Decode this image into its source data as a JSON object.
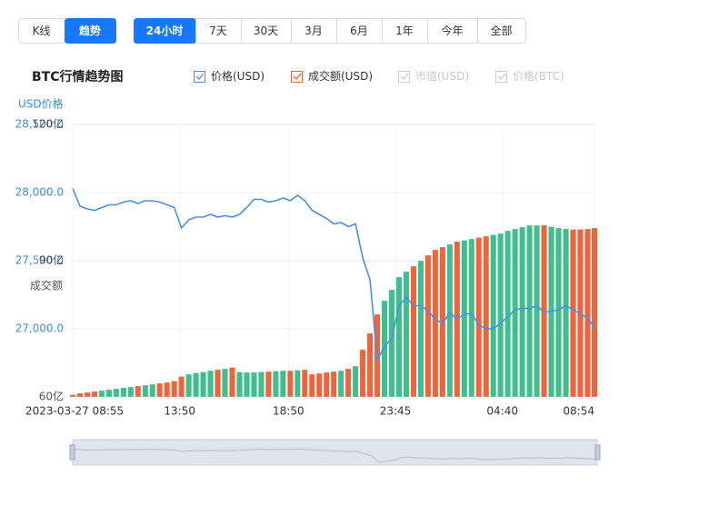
{
  "controls": {
    "tabs": [
      "K线",
      "趋势"
    ],
    "active_tab": 1,
    "ranges": [
      "24小时",
      "7天",
      "30天",
      "3月",
      "6月",
      "1年",
      "今年",
      "全部"
    ],
    "active_range": 0
  },
  "chart_data": {
    "type": "price-volume",
    "title": "BTC行情趋势图",
    "legend": [
      {
        "label": "价格(USD)",
        "color": "#4a90e2",
        "checked": true
      },
      {
        "label": "成交额(USD)",
        "color": "#f0643c",
        "checked": true
      },
      {
        "label": "市值(USD)",
        "color": "#cccccc",
        "checked": false
      },
      {
        "label": "价格(BTC)",
        "color": "#cccccc",
        "checked": false
      }
    ],
    "y_label": "USD价格",
    "y2_label": "成交额",
    "x": [
      0,
      20,
      40,
      60,
      80,
      100,
      120,
      140,
      160,
      180,
      200,
      220,
      240,
      260,
      280,
      300,
      320,
      340,
      360,
      380,
      400,
      420,
      440,
      460,
      480,
      500,
      520,
      540,
      560,
      580,
      600,
      620,
      640,
      660,
      680,
      700,
      720,
      740,
      760,
      780,
      800,
      820,
      840,
      860,
      880,
      900,
      920,
      940,
      960,
      980,
      1000,
      1020,
      1040,
      1060,
      1080,
      1100,
      1120,
      1140,
      1160,
      1180,
      1200,
      1220,
      1240,
      1260,
      1280,
      1300,
      1320,
      1340,
      1360,
      1380,
      1400,
      1420,
      1439
    ],
    "xlim": [
      0,
      1439
    ],
    "xticks": [
      {
        "value": 0,
        "label": "2023-03-27 08:55"
      },
      {
        "value": 295,
        "label": "13:50"
      },
      {
        "value": 595,
        "label": "18:50"
      },
      {
        "value": 890,
        "label": "23:45"
      },
      {
        "value": 1185,
        "label": "04:40"
      },
      {
        "value": 1439,
        "label": "08:54"
      }
    ],
    "ylim": [
      26500,
      28500
    ],
    "yticks": [
      {
        "value": 27000,
        "label": "27,000.0"
      },
      {
        "value": 27500,
        "label": "27,500.0"
      },
      {
        "value": 28000,
        "label": "28,000.0"
      },
      {
        "value": 28500,
        "label": "28,500.0"
      }
    ],
    "y2lim": [
      60,
      120
    ],
    "y2ticks": [
      {
        "value": 60,
        "label": "60亿"
      },
      {
        "value": 90,
        "label": "90亿"
      },
      {
        "value": 120,
        "label": "120亿"
      }
    ],
    "series": [
      {
        "color": "#4a90e2",
        "values": [
          28030,
          27900,
          27880,
          27870,
          27890,
          27910,
          27910,
          27930,
          27940,
          27920,
          27940,
          27940,
          27930,
          27910,
          27890,
          27740,
          27800,
          27820,
          27820,
          27840,
          27820,
          27830,
          27820,
          27840,
          27890,
          27950,
          27950,
          27930,
          27940,
          27960,
          27940,
          27980,
          27940,
          27870,
          27840,
          27810,
          27770,
          27780,
          27750,
          27770,
          27520,
          27360,
          26770,
          26870,
          26930,
          27170,
          27230,
          27170,
          27170,
          27130,
          27070,
          27040,
          27120,
          27070,
          27110,
          27110,
          27030,
          27000,
          27000,
          27040,
          27090,
          27140,
          27150,
          27150,
          27170,
          27120,
          27130,
          27140,
          27170,
          27140,
          27110,
          27080,
          27010
        ]
      },
      {
        "axis": "y2",
        "color": "#f0643c",
        "up_color": "#3fbf8f",
        "values": [
          60.5,
          60.8,
          61,
          61.2,
          61.4,
          61.6,
          61.8,
          62,
          62.2,
          62.4,
          62.6,
          62.8,
          63,
          63.2,
          63.5,
          64.5,
          65,
          65.3,
          65.5,
          65.8,
          66,
          66.2,
          66.5,
          65.5,
          65.4,
          65.4,
          65.5,
          65.6,
          65.7,
          65.8,
          65.8,
          65.9,
          66,
          65,
          65.2,
          65.4,
          65.6,
          65.8,
          66.2,
          66.8,
          70.4,
          74,
          78.2,
          81.2,
          83.6,
          86.4,
          87.6,
          88.8,
          90,
          91.2,
          92.4,
          93,
          93.6,
          94.2,
          94.5,
          94.8,
          95.1,
          95.4,
          95.7,
          96,
          96.6,
          97,
          97.4,
          97.8,
          97.8,
          97.8,
          97.5,
          97.2,
          97,
          96.9,
          96.9,
          97,
          97.2
        ]
      }
    ]
  }
}
